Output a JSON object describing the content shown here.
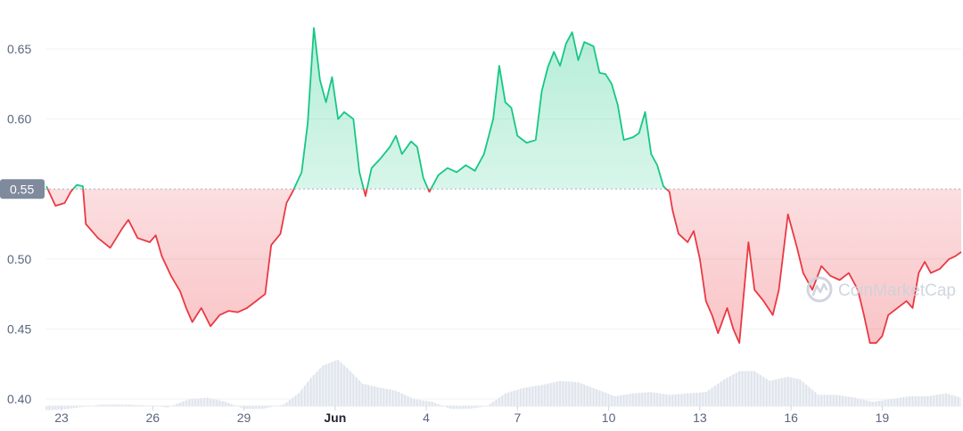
{
  "chart_data": {
    "type": "line",
    "baseline": 0.55,
    "baseline_label": "0.55",
    "ylim": [
      0.395,
      0.685
    ],
    "y_ticks": [
      "0.40",
      "0.45",
      "0.50",
      "0.55",
      "0.60",
      "0.65"
    ],
    "y_tick_values": [
      0.4,
      0.45,
      0.5,
      0.55,
      0.6,
      0.65
    ],
    "x_range": [
      22.5,
      52.6
    ],
    "x_ticks": [
      {
        "label": "23",
        "x": 23,
        "bold": false
      },
      {
        "label": "26",
        "x": 26,
        "bold": false
      },
      {
        "label": "29",
        "x": 29,
        "bold": false
      },
      {
        "label": "Jun",
        "x": 32,
        "bold": true
      },
      {
        "label": "4",
        "x": 35,
        "bold": false
      },
      {
        "label": "7",
        "x": 38,
        "bold": false
      },
      {
        "label": "10",
        "x": 41,
        "bold": false
      },
      {
        "label": "13",
        "x": 44,
        "bold": false
      },
      {
        "label": "16",
        "x": 47,
        "bold": false
      },
      {
        "label": "19",
        "x": 50,
        "bold": false
      }
    ],
    "price_series": [
      [
        22.5,
        0.552
      ],
      [
        22.8,
        0.538
      ],
      [
        23.1,
        0.54
      ],
      [
        23.3,
        0.548
      ],
      [
        23.5,
        0.553
      ],
      [
        23.7,
        0.552
      ],
      [
        23.8,
        0.525
      ],
      [
        24.2,
        0.515
      ],
      [
        24.6,
        0.508
      ],
      [
        25.0,
        0.522
      ],
      [
        25.2,
        0.528
      ],
      [
        25.5,
        0.515
      ],
      [
        25.9,
        0.512
      ],
      [
        26.1,
        0.517
      ],
      [
        26.3,
        0.502
      ],
      [
        26.6,
        0.488
      ],
      [
        26.9,
        0.477
      ],
      [
        27.1,
        0.465
      ],
      [
        27.3,
        0.455
      ],
      [
        27.6,
        0.465
      ],
      [
        27.9,
        0.452
      ],
      [
        28.2,
        0.46
      ],
      [
        28.5,
        0.463
      ],
      [
        28.8,
        0.462
      ],
      [
        29.1,
        0.465
      ],
      [
        29.4,
        0.47
      ],
      [
        29.7,
        0.475
      ],
      [
        29.9,
        0.51
      ],
      [
        30.2,
        0.518
      ],
      [
        30.4,
        0.54
      ],
      [
        30.6,
        0.548
      ],
      [
        30.9,
        0.562
      ],
      [
        31.1,
        0.597
      ],
      [
        31.3,
        0.665
      ],
      [
        31.5,
        0.628
      ],
      [
        31.7,
        0.612
      ],
      [
        31.9,
        0.63
      ],
      [
        32.1,
        0.6
      ],
      [
        32.3,
        0.605
      ],
      [
        32.6,
        0.6
      ],
      [
        32.8,
        0.562
      ],
      [
        33.0,
        0.545
      ],
      [
        33.2,
        0.565
      ],
      [
        33.5,
        0.572
      ],
      [
        33.8,
        0.58
      ],
      [
        34.0,
        0.588
      ],
      [
        34.2,
        0.575
      ],
      [
        34.5,
        0.584
      ],
      [
        34.7,
        0.58
      ],
      [
        34.9,
        0.558
      ],
      [
        35.1,
        0.548
      ],
      [
        35.4,
        0.56
      ],
      [
        35.7,
        0.565
      ],
      [
        36.0,
        0.562
      ],
      [
        36.3,
        0.567
      ],
      [
        36.6,
        0.563
      ],
      [
        36.9,
        0.575
      ],
      [
        37.2,
        0.6
      ],
      [
        37.4,
        0.638
      ],
      [
        37.6,
        0.612
      ],
      [
        37.8,
        0.608
      ],
      [
        38.0,
        0.588
      ],
      [
        38.3,
        0.583
      ],
      [
        38.6,
        0.585
      ],
      [
        38.8,
        0.62
      ],
      [
        39.0,
        0.637
      ],
      [
        39.2,
        0.648
      ],
      [
        39.4,
        0.638
      ],
      [
        39.6,
        0.654
      ],
      [
        39.8,
        0.662
      ],
      [
        40.0,
        0.642
      ],
      [
        40.2,
        0.655
      ],
      [
        40.5,
        0.652
      ],
      [
        40.7,
        0.633
      ],
      [
        40.9,
        0.632
      ],
      [
        41.1,
        0.625
      ],
      [
        41.3,
        0.61
      ],
      [
        41.5,
        0.585
      ],
      [
        41.8,
        0.587
      ],
      [
        42.0,
        0.59
      ],
      [
        42.2,
        0.605
      ],
      [
        42.4,
        0.575
      ],
      [
        42.6,
        0.567
      ],
      [
        42.8,
        0.552
      ],
      [
        43.0,
        0.548
      ],
      [
        43.1,
        0.535
      ],
      [
        43.3,
        0.518
      ],
      [
        43.6,
        0.512
      ],
      [
        43.8,
        0.52
      ],
      [
        44.0,
        0.5
      ],
      [
        44.2,
        0.47
      ],
      [
        44.4,
        0.46
      ],
      [
        44.6,
        0.447
      ],
      [
        44.9,
        0.465
      ],
      [
        45.1,
        0.45
      ],
      [
        45.3,
        0.44
      ],
      [
        45.6,
        0.512
      ],
      [
        45.8,
        0.478
      ],
      [
        46.1,
        0.47
      ],
      [
        46.4,
        0.46
      ],
      [
        46.6,
        0.478
      ],
      [
        46.9,
        0.532
      ],
      [
        47.2,
        0.508
      ],
      [
        47.4,
        0.49
      ],
      [
        47.7,
        0.478
      ],
      [
        48.0,
        0.495
      ],
      [
        48.3,
        0.488
      ],
      [
        48.6,
        0.485
      ],
      [
        48.9,
        0.49
      ],
      [
        49.2,
        0.478
      ],
      [
        49.4,
        0.46
      ],
      [
        49.6,
        0.44
      ],
      [
        49.8,
        0.44
      ],
      [
        50.0,
        0.445
      ],
      [
        50.2,
        0.46
      ],
      [
        50.5,
        0.465
      ],
      [
        50.8,
        0.47
      ],
      [
        51.0,
        0.465
      ],
      [
        51.2,
        0.49
      ],
      [
        51.4,
        0.498
      ],
      [
        51.6,
        0.49
      ],
      [
        51.9,
        0.493
      ],
      [
        52.2,
        0.5
      ],
      [
        52.4,
        0.502
      ],
      [
        52.6,
        0.505
      ]
    ],
    "volume_series": [
      [
        22.5,
        0.392
      ],
      [
        23.2,
        0.393
      ],
      [
        24.3,
        0.396
      ],
      [
        25.2,
        0.396
      ],
      [
        26.1,
        0.395
      ],
      [
        26.5,
        0.394
      ],
      [
        27.2,
        0.4
      ],
      [
        27.8,
        0.401
      ],
      [
        28.4,
        0.398
      ],
      [
        29.0,
        0.393
      ],
      [
        29.6,
        0.393
      ],
      [
        30.3,
        0.396
      ],
      [
        30.8,
        0.404
      ],
      [
        31.2,
        0.415
      ],
      [
        31.6,
        0.424
      ],
      [
        32.1,
        0.428
      ],
      [
        32.5,
        0.42
      ],
      [
        32.9,
        0.411
      ],
      [
        33.5,
        0.408
      ],
      [
        34.0,
        0.406
      ],
      [
        34.6,
        0.4
      ],
      [
        35.2,
        0.398
      ],
      [
        35.8,
        0.393
      ],
      [
        36.4,
        0.393
      ],
      [
        37.0,
        0.395
      ],
      [
        37.6,
        0.404
      ],
      [
        38.2,
        0.408
      ],
      [
        38.8,
        0.41
      ],
      [
        39.4,
        0.413
      ],
      [
        40.0,
        0.412
      ],
      [
        40.6,
        0.407
      ],
      [
        41.2,
        0.402
      ],
      [
        41.8,
        0.404
      ],
      [
        42.4,
        0.405
      ],
      [
        43.0,
        0.403
      ],
      [
        43.6,
        0.404
      ],
      [
        44.2,
        0.405
      ],
      [
        44.8,
        0.414
      ],
      [
        45.3,
        0.42
      ],
      [
        45.8,
        0.42
      ],
      [
        46.3,
        0.413
      ],
      [
        46.9,
        0.416
      ],
      [
        47.3,
        0.414
      ],
      [
        47.9,
        0.403
      ],
      [
        48.5,
        0.403
      ],
      [
        49.1,
        0.401
      ],
      [
        49.7,
        0.398
      ],
      [
        50.3,
        0.4
      ],
      [
        50.9,
        0.402
      ],
      [
        51.5,
        0.402
      ],
      [
        52.1,
        0.404
      ],
      [
        52.6,
        0.401
      ]
    ],
    "colors": {
      "up": "#16c784",
      "down": "#ea3943",
      "axis_text": "#58667e",
      "grid": "#eff2f5",
      "baseline_dash": "#a6b0c3",
      "baseline_label_bg": "#808a9d",
      "volume": "#dde2ea"
    }
  },
  "watermark": {
    "text": "CoinMarketCap",
    "icon": "coinmarketcap-logo-icon"
  }
}
